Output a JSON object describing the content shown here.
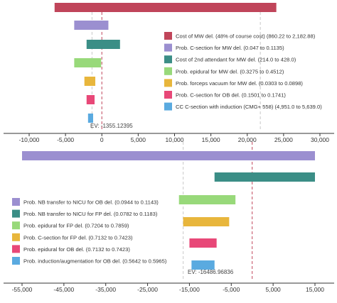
{
  "chart_data": [
    {
      "type": "bar",
      "subtype": "tornado",
      "title": "",
      "xlabel": "",
      "ylabel": "",
      "xlim": [
        -11000,
        31000
      ],
      "x_ticks": [
        "-10,000",
        "-5,000",
        "0",
        "5,000",
        "10,000",
        "15,000",
        "20,000",
        "25,000",
        "30,000"
      ],
      "tick_values": [
        -10000,
        -5000,
        0,
        5000,
        10000,
        15000,
        20000,
        25000,
        30000
      ],
      "ev_label": "EV: -1355.12395",
      "ev_value": -1355.12395,
      "red_dashed_line_value": 0,
      "gray_dashed_lines": [
        -1355.12395,
        21800
      ],
      "legend_position": "right",
      "series": [
        {
          "name": "Cost of MW del. (48% of course cost) (860.22 to 2,182.88)",
          "low": -6500,
          "high": 24000,
          "color": "#c0455a"
        },
        {
          "name": "Prob. C-section for MW del. (0.047 to 0.1135)",
          "low": -3800,
          "high": 900,
          "color": "#9b8fd0"
        },
        {
          "name": "Cost of 2nd attendant for MW del. (214.0 to 428.0)",
          "low": -2100,
          "high": 2500,
          "color": "#3b8e86"
        },
        {
          "name": "Prob. epidural for MW del. (0.3275 to 0.4512)",
          "low": -3800,
          "high": -100,
          "color": "#98d97a"
        },
        {
          "name": "Prob. forceps vacuum for MW del. (0.0303 to 0.0898)",
          "low": -2400,
          "high": -900,
          "color": "#e8b63c"
        },
        {
          "name": "Prob. C-section for OB del. (0.1501 to 0.1741)",
          "low": -2100,
          "high": -1000,
          "color": "#e84878"
        },
        {
          "name": "CC C-section with induction (CMG+ 558) (4,951.0 to 5,639.0)",
          "low": -1900,
          "high": -1200,
          "color": "#5aaae0"
        }
      ]
    },
    {
      "type": "bar",
      "subtype": "tornado",
      "title": "",
      "xlabel": "",
      "ylabel": "",
      "xlim": [
        -57500,
        17000
      ],
      "x_ticks": [
        "-55,000",
        "-45,000",
        "-35,000",
        "-25,000",
        "-15,000",
        "-5,000",
        "5,000",
        "15,000"
      ],
      "tick_values": [
        -55000,
        -45000,
        -35000,
        -25000,
        -15000,
        -5000,
        5000,
        15000
      ],
      "ev_label": "EV: -16486.96836",
      "ev_value": -16486.96836,
      "red_dashed_line_value": 0,
      "gray_dashed_lines": [
        -16486.96836
      ],
      "legend_position": "left",
      "series": [
        {
          "name": "Prob. NB transfer to NICU for OB del. (0.0944 to 0.1143)",
          "low": -55000,
          "high": 15000,
          "color": "#9b8fd0"
        },
        {
          "name": "Prob. NB transfer to NICU for FP del. (0.0782 to 0.1183)",
          "low": -9000,
          "high": 15000,
          "color": "#3b8e86"
        },
        {
          "name": "Prob. epidural for FP del. (0.7204 to 0.7859)",
          "low": -17500,
          "high": -4000,
          "color": "#98d97a"
        },
        {
          "name": "Prob. C-section for FP del. (0.7132 to 0.7423)",
          "low": -16500,
          "high": -5500,
          "color": "#e8b63c"
        },
        {
          "name": "Prob. epidural for OB del. (0.7132 to 0.7423)",
          "low": -15000,
          "high": -8500,
          "color": "#e84878"
        },
        {
          "name": "Prob. induction/augmentation for OB del. (0.5642 to 0.5965)",
          "low": -14500,
          "high": -9000,
          "color": "#5aaae0"
        }
      ]
    }
  ]
}
